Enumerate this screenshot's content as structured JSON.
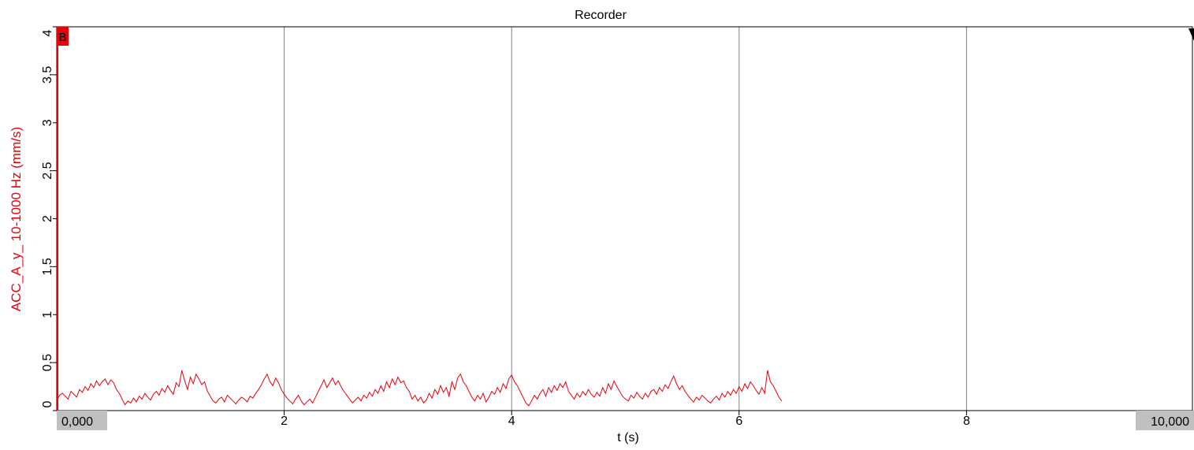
{
  "colors": {
    "series": "#e8000b",
    "grid": "#808080",
    "badge": "#c0c0c0",
    "marker": "#e8000b"
  },
  "chart_data": {
    "type": "line",
    "title": "Recorder",
    "xlabel": "t (s)",
    "ylabel": "ACC_A_y_ 10-1000 Hz (mm/s)",
    "xlim": [
      0,
      10
    ],
    "ylim": [
      0,
      4
    ],
    "x_ticks": [
      "2",
      "4",
      "6",
      "8"
    ],
    "y_ticks": [
      "0",
      "0,5",
      "1",
      "1,5",
      "2",
      "2,5",
      "3",
      "3,5",
      "4"
    ],
    "x_start_label": "0,000",
    "x_end_label": "10,000",
    "marker_label": "B",
    "grid": "vertical",
    "series": [
      {
        "color": "#e8000b",
        "x_step": 0.025,
        "values": [
          0.1,
          0.16,
          0.18,
          0.15,
          0.12,
          0.2,
          0.17,
          0.14,
          0.22,
          0.19,
          0.25,
          0.21,
          0.28,
          0.24,
          0.31,
          0.26,
          0.3,
          0.33,
          0.27,
          0.32,
          0.29,
          0.22,
          0.18,
          0.12,
          0.06,
          0.1,
          0.08,
          0.13,
          0.09,
          0.15,
          0.12,
          0.18,
          0.14,
          0.11,
          0.17,
          0.2,
          0.16,
          0.23,
          0.19,
          0.26,
          0.21,
          0.17,
          0.29,
          0.25,
          0.42,
          0.31,
          0.22,
          0.35,
          0.28,
          0.38,
          0.33,
          0.27,
          0.3,
          0.2,
          0.15,
          0.1,
          0.08,
          0.12,
          0.14,
          0.09,
          0.16,
          0.13,
          0.1,
          0.07,
          0.11,
          0.14,
          0.12,
          0.09,
          0.15,
          0.13,
          0.18,
          0.22,
          0.27,
          0.33,
          0.38,
          0.3,
          0.26,
          0.34,
          0.29,
          0.22,
          0.17,
          0.13,
          0.1,
          0.07,
          0.12,
          0.16,
          0.1,
          0.06,
          0.09,
          0.12,
          0.08,
          0.14,
          0.2,
          0.26,
          0.32,
          0.24,
          0.29,
          0.34,
          0.27,
          0.31,
          0.25,
          0.2,
          0.16,
          0.12,
          0.08,
          0.11,
          0.14,
          0.1,
          0.16,
          0.13,
          0.19,
          0.15,
          0.22,
          0.18,
          0.26,
          0.2,
          0.3,
          0.24,
          0.33,
          0.27,
          0.35,
          0.29,
          0.31,
          0.24,
          0.2,
          0.12,
          0.16,
          0.1,
          0.14,
          0.08,
          0.11,
          0.18,
          0.13,
          0.22,
          0.17,
          0.26,
          0.19,
          0.24,
          0.15,
          0.3,
          0.22,
          0.34,
          0.38,
          0.3,
          0.26,
          0.2,
          0.14,
          0.1,
          0.16,
          0.12,
          0.18,
          0.09,
          0.14,
          0.2,
          0.17,
          0.24,
          0.19,
          0.28,
          0.23,
          0.33,
          0.37,
          0.3,
          0.26,
          0.2,
          0.14,
          0.08,
          0.05,
          0.1,
          0.16,
          0.12,
          0.18,
          0.22,
          0.15,
          0.24,
          0.19,
          0.26,
          0.21,
          0.28,
          0.24,
          0.3,
          0.2,
          0.16,
          0.12,
          0.18,
          0.14,
          0.2,
          0.16,
          0.22,
          0.17,
          0.14,
          0.19,
          0.15,
          0.24,
          0.18,
          0.28,
          0.22,
          0.31,
          0.25,
          0.2,
          0.15,
          0.12,
          0.1,
          0.16,
          0.13,
          0.19,
          0.15,
          0.12,
          0.18,
          0.14,
          0.2,
          0.22,
          0.17,
          0.24,
          0.2,
          0.27,
          0.23,
          0.3,
          0.36,
          0.28,
          0.22,
          0.26,
          0.2,
          0.16,
          0.12,
          0.09,
          0.14,
          0.11,
          0.16,
          0.13,
          0.1,
          0.08,
          0.12,
          0.15,
          0.11,
          0.18,
          0.14,
          0.2,
          0.16,
          0.22,
          0.18,
          0.25,
          0.2,
          0.28,
          0.23,
          0.3,
          0.26,
          0.21,
          0.17,
          0.24,
          0.18,
          0.42,
          0.3,
          0.26,
          0.2,
          0.14,
          0.1
        ]
      }
    ]
  }
}
